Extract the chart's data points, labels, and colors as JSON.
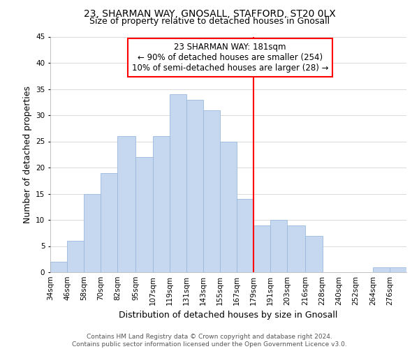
{
  "title": "23, SHARMAN WAY, GNOSALL, STAFFORD, ST20 0LX",
  "subtitle": "Size of property relative to detached houses in Gnosall",
  "xlabel": "Distribution of detached houses by size in Gnosall",
  "ylabel": "Number of detached properties",
  "bin_labels": [
    "34sqm",
    "46sqm",
    "58sqm",
    "70sqm",
    "82sqm",
    "95sqm",
    "107sqm",
    "119sqm",
    "131sqm",
    "143sqm",
    "155sqm",
    "167sqm",
    "179sqm",
    "191sqm",
    "203sqm",
    "216sqm",
    "228sqm",
    "240sqm",
    "252sqm",
    "264sqm",
    "276sqm"
  ],
  "bin_edges": [
    34,
    46,
    58,
    70,
    82,
    95,
    107,
    119,
    131,
    143,
    155,
    167,
    179,
    191,
    203,
    216,
    228,
    240,
    252,
    264,
    276,
    288
  ],
  "counts": [
    2,
    6,
    15,
    19,
    26,
    22,
    26,
    34,
    33,
    31,
    25,
    14,
    9,
    10,
    9,
    7,
    0,
    0,
    0,
    1,
    1
  ],
  "bar_color": "#c5d8f0",
  "bar_edgecolor": "#9ab8dd",
  "ref_line_x": 179,
  "ref_line_color": "red",
  "annotation_title": "23 SHARMAN WAY: 181sqm",
  "annotation_line1": "← 90% of detached houses are smaller (254)",
  "annotation_line2": "10% of semi-detached houses are larger (28) →",
  "annotation_box_color": "white",
  "annotation_box_edgecolor": "red",
  "ylim": [
    0,
    45
  ],
  "yticks": [
    0,
    5,
    10,
    15,
    20,
    25,
    30,
    35,
    40,
    45
  ],
  "footer_line1": "Contains HM Land Registry data © Crown copyright and database right 2024.",
  "footer_line2": "Contains public sector information licensed under the Open Government Licence v3.0.",
  "title_fontsize": 10,
  "subtitle_fontsize": 9,
  "axis_label_fontsize": 9,
  "tick_fontsize": 7.5,
  "footer_fontsize": 6.5,
  "annotation_fontsize": 8.5
}
